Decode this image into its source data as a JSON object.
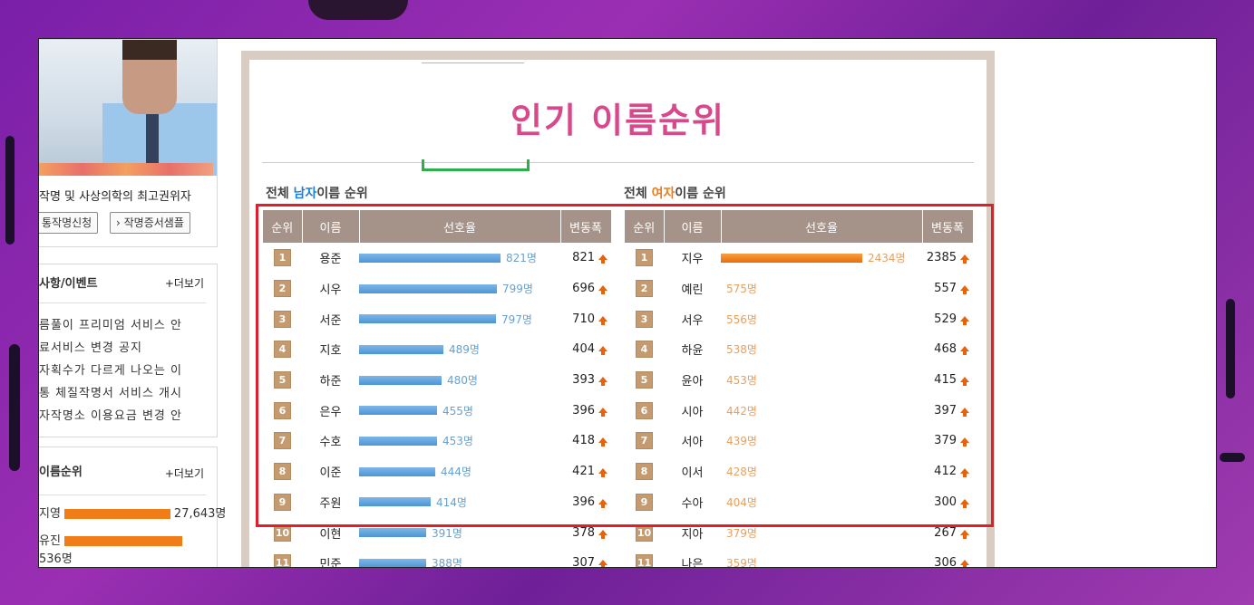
{
  "sidebar": {
    "tagline": "작명 및 사상의학의 최고권위자",
    "buttons": [
      "통작명신청",
      "› 작명증서샘플"
    ],
    "notice": {
      "title": "사항/이벤트",
      "more": "+더보기",
      "items": [
        "름풀이 프리미엄 서비스 안",
        "료서비스 변경 공지",
        "자획수가 다르게 나오는 이",
        "통 체질작명서 서비스 개시",
        "자작명소 이용요금 변경 안"
      ]
    },
    "ranking": {
      "title": "이름순위",
      "more": "+더보기",
      "items": [
        {
          "name": "지영",
          "count": "27,643명",
          "fill": 0.9
        },
        {
          "name": "유진",
          "count": "536명",
          "fill": 1.0
        }
      ]
    }
  },
  "main": {
    "title": "인기 이름순위",
    "male": {
      "prefix": "전체 ",
      "highlight": "남자",
      "suffix": "이름 순위",
      "headers": [
        "순위",
        "이름",
        "선호율",
        "변동폭"
      ],
      "rows": [
        {
          "rank": "1",
          "name": "용준",
          "count": "821명",
          "value": 821,
          "change": "821"
        },
        {
          "rank": "2",
          "name": "시우",
          "count": "799명",
          "value": 799,
          "change": "696"
        },
        {
          "rank": "3",
          "name": "서준",
          "count": "797명",
          "value": 797,
          "change": "710"
        },
        {
          "rank": "4",
          "name": "지호",
          "count": "489명",
          "value": 489,
          "change": "404"
        },
        {
          "rank": "5",
          "name": "하준",
          "count": "480명",
          "value": 480,
          "change": "393"
        },
        {
          "rank": "6",
          "name": "은우",
          "count": "455명",
          "value": 455,
          "change": "396"
        },
        {
          "rank": "7",
          "name": "수호",
          "count": "453명",
          "value": 453,
          "change": "418"
        },
        {
          "rank": "8",
          "name": "이준",
          "count": "444명",
          "value": 444,
          "change": "421"
        },
        {
          "rank": "9",
          "name": "주원",
          "count": "414명",
          "value": 414,
          "change": "396"
        },
        {
          "rank": "10",
          "name": "이현",
          "count": "391명",
          "value": 391,
          "change": "378"
        },
        {
          "rank": "11",
          "name": "민준",
          "count": "388명",
          "value": 388,
          "change": "307"
        }
      ]
    },
    "female": {
      "prefix": "전체 ",
      "highlight": "여자",
      "suffix": "이름 순위",
      "headers": [
        "순위",
        "이름",
        "선호율",
        "변동폭"
      ],
      "rows": [
        {
          "rank": "1",
          "name": "지우",
          "count": "2434명",
          "value": 2434,
          "change": "2385"
        },
        {
          "rank": "2",
          "name": "예린",
          "count": "575명",
          "value": 575,
          "change": "557"
        },
        {
          "rank": "3",
          "name": "서우",
          "count": "556명",
          "value": 556,
          "change": "529"
        },
        {
          "rank": "4",
          "name": "하윤",
          "count": "538명",
          "value": 538,
          "change": "468"
        },
        {
          "rank": "5",
          "name": "윤아",
          "count": "453명",
          "value": 453,
          "change": "415"
        },
        {
          "rank": "6",
          "name": "시아",
          "count": "442명",
          "value": 442,
          "change": "397"
        },
        {
          "rank": "7",
          "name": "서아",
          "count": "439명",
          "value": 439,
          "change": "379"
        },
        {
          "rank": "8",
          "name": "이서",
          "count": "428명",
          "value": 428,
          "change": "412"
        },
        {
          "rank": "9",
          "name": "수아",
          "count": "404명",
          "value": 404,
          "change": "300"
        },
        {
          "rank": "10",
          "name": "지아",
          "count": "379명",
          "value": 379,
          "change": "267"
        },
        {
          "rank": "11",
          "name": "나은",
          "count": "359명",
          "value": 359,
          "change": "306"
        }
      ]
    }
  },
  "colors": {
    "title": "#d8498c",
    "male_accent": "#1e7fd8",
    "female_accent": "#f07d17",
    "highlight_box": "#e01f2d",
    "header_bg": "#a5938a"
  }
}
